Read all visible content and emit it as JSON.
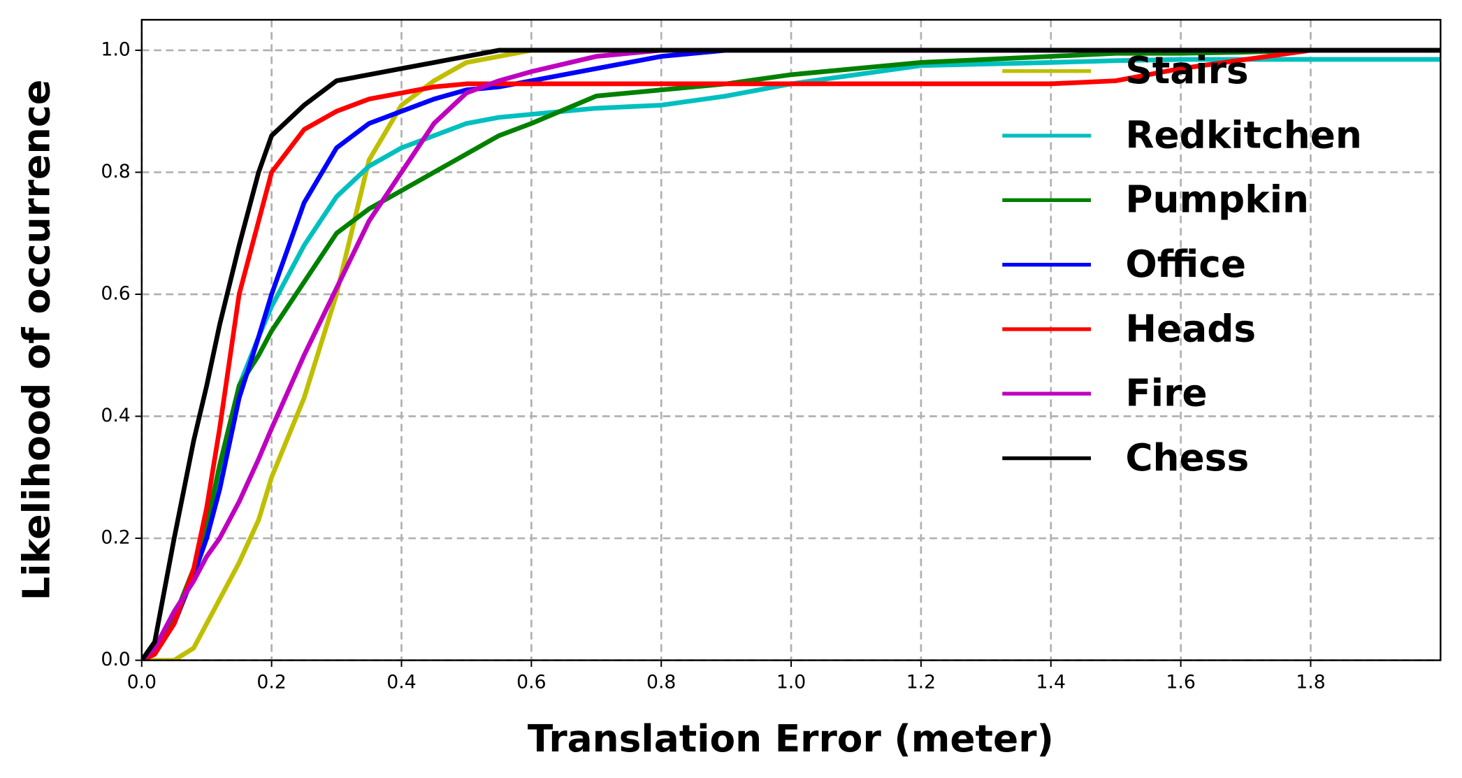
{
  "chart_data": {
    "type": "line",
    "xlabel": "Translation Error (meter)",
    "ylabel": "Likelihood of occurrence",
    "x": [
      0,
      0.02,
      0.05,
      0.08,
      0.1,
      0.12,
      0.15,
      0.18,
      0.2,
      0.25,
      0.3,
      0.35,
      0.4,
      0.45,
      0.5,
      0.55,
      0.6,
      0.7,
      0.8,
      0.9,
      1.0,
      1.2,
      1.4,
      1.5,
      1.6,
      1.7,
      1.8,
      2.0
    ],
    "series": [
      {
        "name": "Stairs",
        "color": "#bfbf00",
        "values": [
          0,
          0,
          0,
          0.02,
          0.06,
          0.1,
          0.16,
          0.23,
          0.3,
          0.43,
          0.6,
          0.82,
          0.91,
          0.95,
          0.98,
          0.99,
          1,
          1,
          1,
          1,
          1,
          1,
          1,
          1,
          1,
          1,
          1,
          1
        ]
      },
      {
        "name": "Redkitchen",
        "color": "#00bfbf",
        "values": [
          0,
          0.01,
          0.07,
          0.14,
          0.2,
          0.3,
          0.45,
          0.53,
          0.58,
          0.68,
          0.76,
          0.81,
          0.84,
          0.86,
          0.88,
          0.89,
          0.895,
          0.905,
          0.91,
          0.925,
          0.945,
          0.975,
          0.98,
          0.983,
          0.985,
          0.985,
          0.985,
          0.985
        ]
      },
      {
        "name": "Pumpkin",
        "color": "#008000",
        "values": [
          0,
          0.01,
          0.07,
          0.15,
          0.22,
          0.32,
          0.45,
          0.5,
          0.54,
          0.62,
          0.7,
          0.74,
          0.77,
          0.8,
          0.83,
          0.86,
          0.88,
          0.925,
          0.935,
          0.945,
          0.96,
          0.98,
          0.99,
          0.995,
          0.995,
          0.997,
          1,
          1
        ]
      },
      {
        "name": "Office",
        "color": "#0000ff",
        "values": [
          0,
          0.01,
          0.06,
          0.14,
          0.2,
          0.28,
          0.43,
          0.53,
          0.6,
          0.75,
          0.84,
          0.88,
          0.9,
          0.92,
          0.935,
          0.94,
          0.95,
          0.97,
          0.99,
          1,
          1,
          1,
          1,
          1,
          1,
          1,
          1,
          1
        ]
      },
      {
        "name": "Heads",
        "color": "#ff0000",
        "values": [
          0,
          0.01,
          0.06,
          0.15,
          0.25,
          0.38,
          0.6,
          0.72,
          0.8,
          0.87,
          0.9,
          0.92,
          0.93,
          0.94,
          0.945,
          0.945,
          0.945,
          0.945,
          0.945,
          0.945,
          0.945,
          0.945,
          0.945,
          0.95,
          0.97,
          0.985,
          1,
          1
        ]
      },
      {
        "name": "Fire",
        "color": "#bf00bf",
        "values": [
          0,
          0.02,
          0.08,
          0.13,
          0.17,
          0.2,
          0.26,
          0.33,
          0.38,
          0.5,
          0.61,
          0.72,
          0.8,
          0.88,
          0.93,
          0.95,
          0.965,
          0.99,
          1,
          1,
          1,
          1,
          1,
          1,
          1,
          1,
          1,
          1
        ]
      },
      {
        "name": "Chess",
        "color": "#000000",
        "values": [
          0,
          0.03,
          0.2,
          0.36,
          0.45,
          0.55,
          0.68,
          0.8,
          0.86,
          0.91,
          0.95,
          0.96,
          0.97,
          0.98,
          0.99,
          1,
          1,
          1,
          1,
          1,
          1,
          1,
          1,
          1,
          1,
          1,
          1,
          1
        ]
      }
    ],
    "xlim": [
      0,
      2.0
    ],
    "ylim": [
      0,
      1.05
    ],
    "xticks": [
      {
        "value": 0,
        "label": "0.0"
      },
      {
        "value": 0.2,
        "label": "0.2"
      },
      {
        "value": 0.4,
        "label": "0.4"
      },
      {
        "value": 0.6,
        "label": "0.6"
      },
      {
        "value": 0.8,
        "label": "0.8"
      },
      {
        "value": 1.0,
        "label": "1.0"
      },
      {
        "value": 1.2,
        "label": "1.2"
      },
      {
        "value": 1.4,
        "label": "1.4"
      },
      {
        "value": 1.6,
        "label": "1.6"
      },
      {
        "value": 1.8,
        "label": "1.8"
      }
    ],
    "yticks": [
      {
        "value": 0,
        "label": "0.0"
      },
      {
        "value": 0.2,
        "label": "0.2"
      },
      {
        "value": 0.4,
        "label": "0.4"
      },
      {
        "value": 0.6,
        "label": "0.6"
      },
      {
        "value": 0.8,
        "label": "0.8"
      },
      {
        "value": 1.0,
        "label": "1.0"
      }
    ],
    "grid": true,
    "legend": "right"
  }
}
